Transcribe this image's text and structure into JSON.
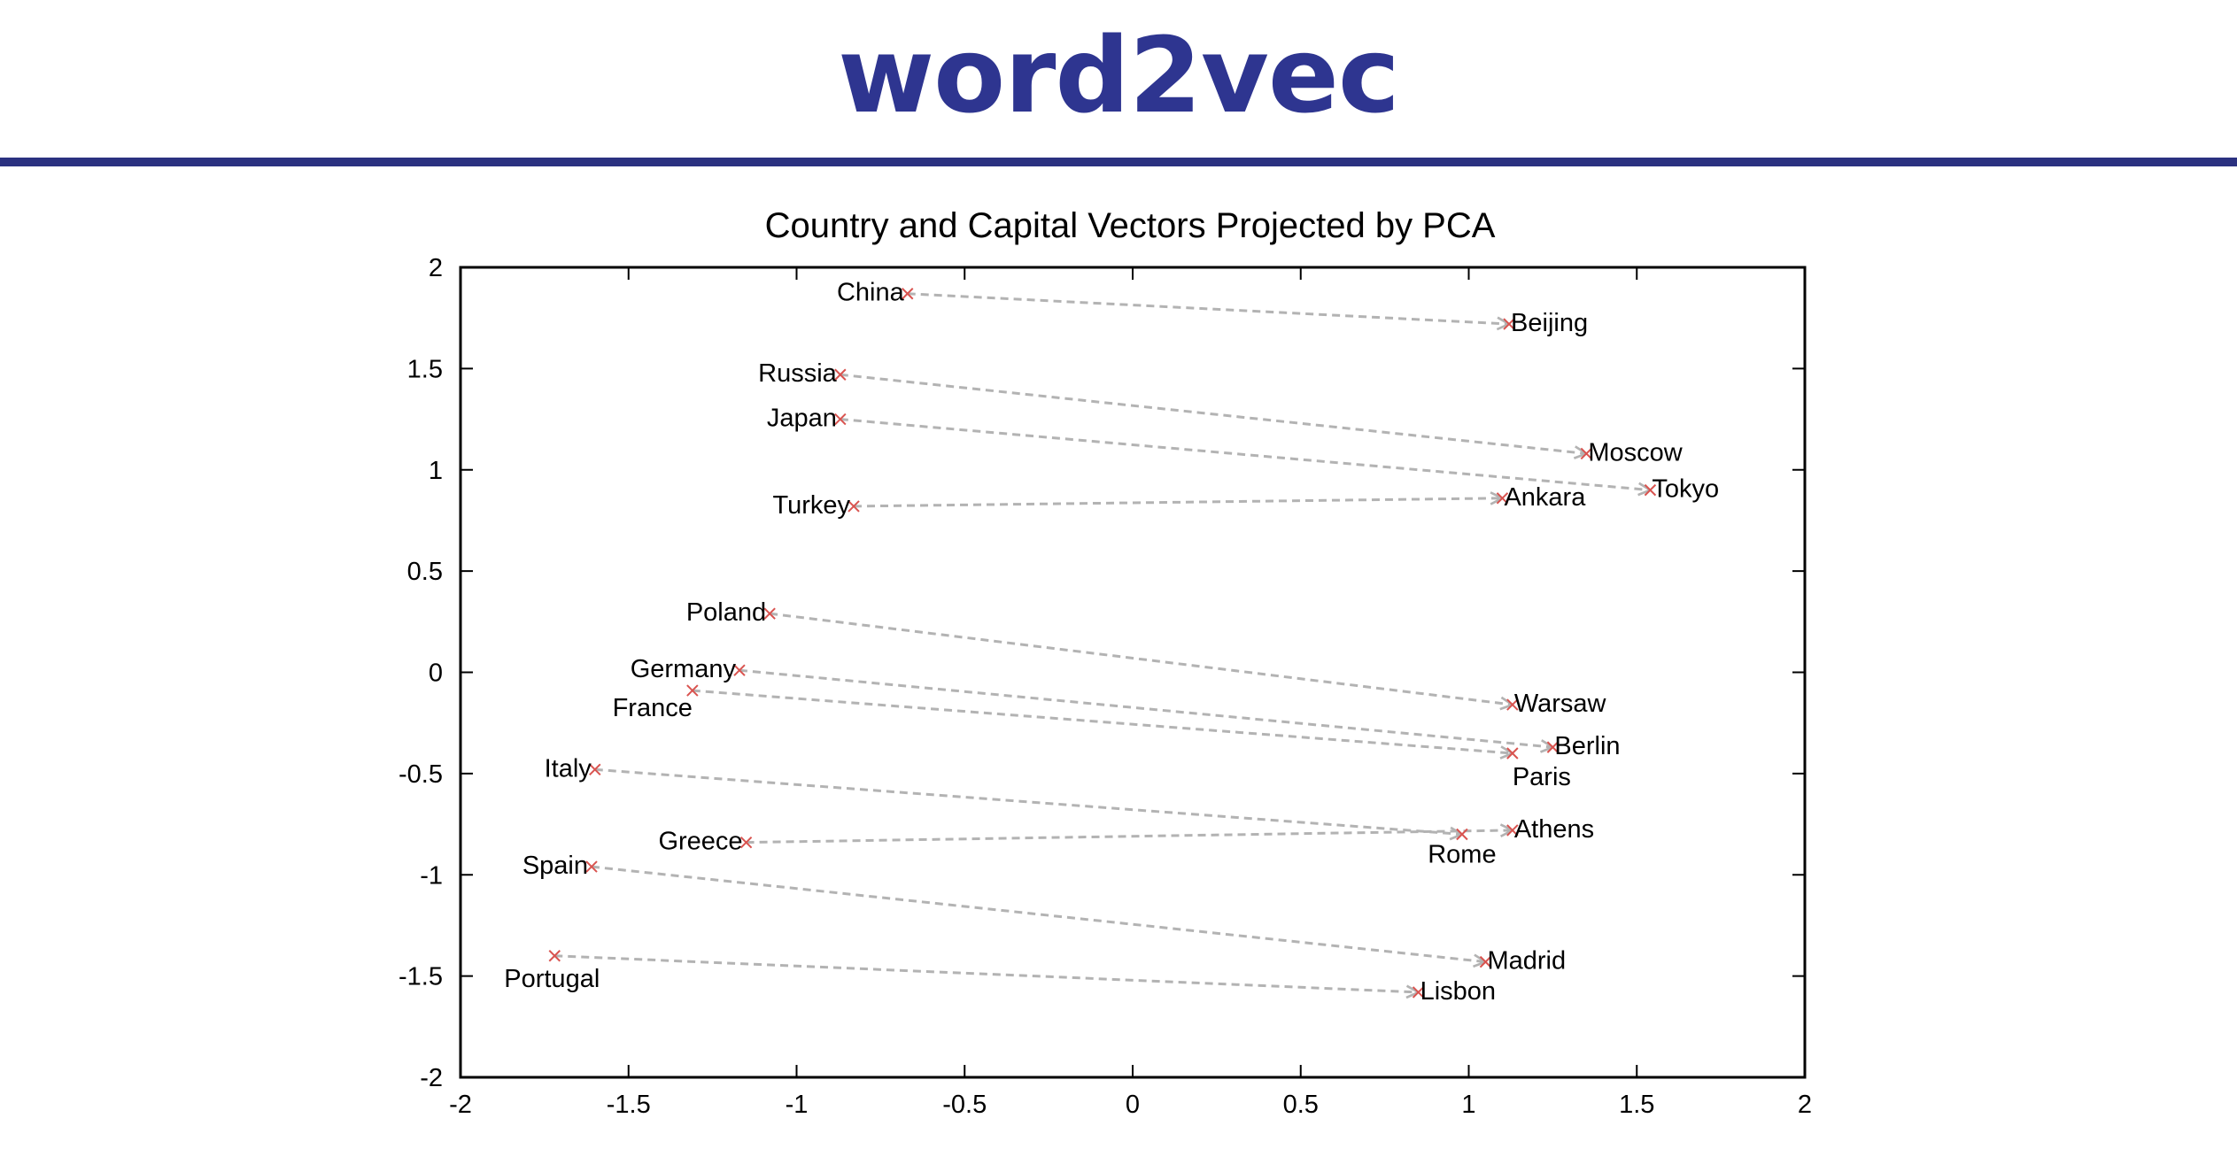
{
  "slide": {
    "title": "word2vec",
    "title_color": "#2e3590",
    "rule_color": "#2b3180"
  },
  "chart_data": {
    "type": "scatter",
    "title": "Country and Capital Vectors Projected by PCA",
    "xlabel": "",
    "ylabel": "",
    "xlim": [
      -2,
      2
    ],
    "ylim": [
      -2,
      2
    ],
    "xticks": [
      -2,
      -1.5,
      -1,
      -0.5,
      0,
      0.5,
      1,
      1.5,
      2
    ],
    "yticks": [
      2,
      1.5,
      1,
      0.5,
      0,
      -0.5,
      -1,
      -1.5,
      -2
    ],
    "xtick_labels": [
      "-2",
      "-1.5",
      "-1",
      "-0.5",
      "0",
      "0.5",
      "1",
      "1.5",
      "2"
    ],
    "ytick_labels": [
      "2",
      "1.5",
      "1",
      "0.5",
      "0",
      "-0.5",
      "-1",
      "-1.5",
      "-2"
    ],
    "grid": false,
    "marker_color": "#d9534f",
    "arrow_color": "#b3b3b3",
    "pairs": [
      {
        "country": "China",
        "country_xy": [
          -0.67,
          1.87
        ],
        "capital": "Beijing",
        "capital_xy": [
          1.12,
          1.72
        ]
      },
      {
        "country": "Russia",
        "country_xy": [
          -0.87,
          1.47
        ],
        "capital": "Moscow",
        "capital_xy": [
          1.35,
          1.08
        ]
      },
      {
        "country": "Japan",
        "country_xy": [
          -0.87,
          1.25
        ],
        "capital": "Tokyo",
        "capital_xy": [
          1.54,
          0.9
        ]
      },
      {
        "country": "Turkey",
        "country_xy": [
          -0.83,
          0.82
        ],
        "capital": "Ankara",
        "capital_xy": [
          1.1,
          0.86
        ]
      },
      {
        "country": "Poland",
        "country_xy": [
          -1.08,
          0.29
        ],
        "capital": "Warsaw",
        "capital_xy": [
          1.13,
          -0.16
        ]
      },
      {
        "country": "Germany",
        "country_xy": [
          -1.17,
          0.01
        ],
        "capital": "Berlin",
        "capital_xy": [
          1.25,
          -0.37
        ]
      },
      {
        "country": "France",
        "country_xy": [
          -1.31,
          -0.09
        ],
        "capital": "Paris",
        "capital_xy": [
          1.13,
          -0.4
        ]
      },
      {
        "country": "Italy",
        "country_xy": [
          -1.6,
          -0.48
        ],
        "capital": "Rome",
        "capital_xy": [
          0.98,
          -0.8
        ]
      },
      {
        "country": "Greece",
        "country_xy": [
          -1.15,
          -0.84
        ],
        "capital": "Athens",
        "capital_xy": [
          1.13,
          -0.78
        ]
      },
      {
        "country": "Spain",
        "country_xy": [
          -1.61,
          -0.96
        ],
        "capital": "Madrid",
        "capital_xy": [
          1.05,
          -1.43
        ]
      },
      {
        "country": "Portugal",
        "country_xy": [
          -1.72,
          -1.4
        ],
        "capital": "Lisbon",
        "capital_xy": [
          0.85,
          -1.58
        ]
      }
    ]
  }
}
